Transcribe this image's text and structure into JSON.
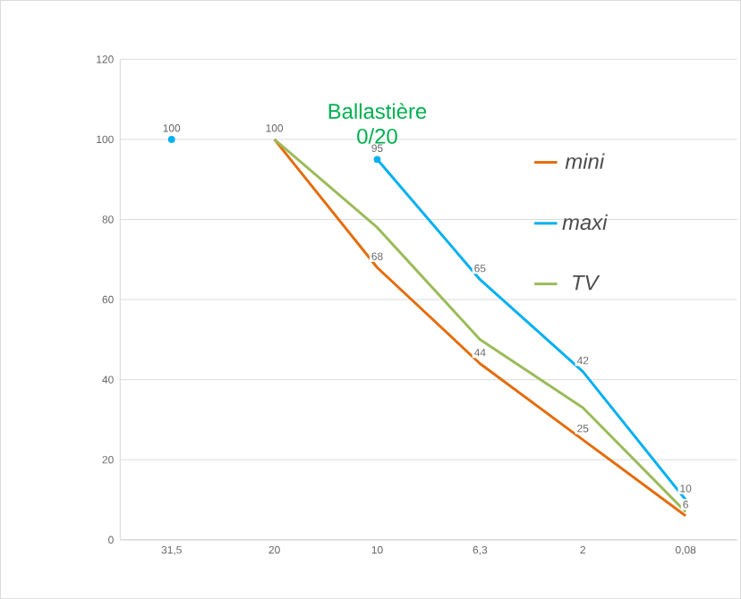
{
  "chart_data": {
    "type": "line",
    "title": "Ballastière 0/20",
    "categories": [
      "31,5",
      "20",
      "10",
      "6,3",
      "2",
      "0,08"
    ],
    "series": [
      {
        "name": "mini",
        "color": "#e46c0a",
        "values": [
          null,
          100,
          68,
          44,
          25,
          6
        ],
        "value_labels": [
          null,
          "100",
          "68",
          "44",
          "25",
          "6"
        ]
      },
      {
        "name": "maxi",
        "color": "#00b0f0",
        "values": [
          100,
          null,
          95,
          65,
          42,
          10
        ],
        "value_labels": [
          "100",
          null,
          "95",
          "65",
          "42",
          "10"
        ]
      },
      {
        "name": "TV",
        "color": "#9bbb59",
        "values": [
          null,
          100,
          78,
          50,
          33,
          7
        ]
      }
    ],
    "ylim": [
      0,
      120
    ],
    "yticks": [
      0,
      20,
      40,
      60,
      80,
      100,
      120
    ],
    "grid": "y",
    "legend": "right",
    "marker": "none",
    "line_style": "solid"
  }
}
